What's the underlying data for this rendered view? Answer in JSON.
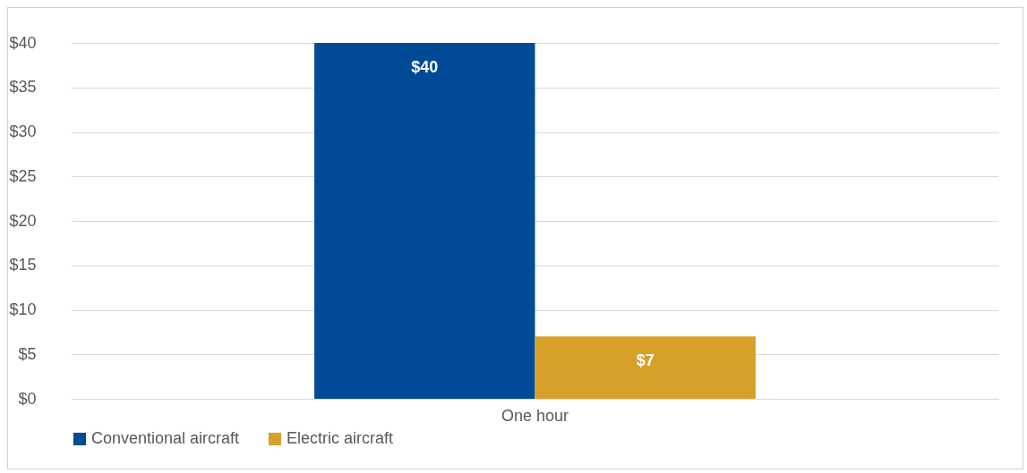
{
  "chart_data": {
    "type": "bar",
    "categories": [
      "One hour"
    ],
    "series": [
      {
        "name": "Conventional aircraft",
        "color": "#004a97",
        "values": [
          40
        ],
        "value_labels": [
          "$40"
        ]
      },
      {
        "name": "Electric aircraft",
        "color": "#d6a02b",
        "values": [
          7
        ],
        "value_labels": [
          "$7"
        ]
      }
    ],
    "ylim": [
      0,
      40
    ],
    "yticks": [
      {
        "value": 0,
        "label": "$0"
      },
      {
        "value": 5,
        "label": "$5"
      },
      {
        "value": 10,
        "label": "$10"
      },
      {
        "value": 15,
        "label": "$15"
      },
      {
        "value": 20,
        "label": "$20"
      },
      {
        "value": 25,
        "label": "$25"
      },
      {
        "value": 30,
        "label": "$30"
      },
      {
        "value": 35,
        "label": "$35"
      },
      {
        "value": 40,
        "label": "$40"
      }
    ],
    "grid": "y",
    "legend": "bottom"
  }
}
